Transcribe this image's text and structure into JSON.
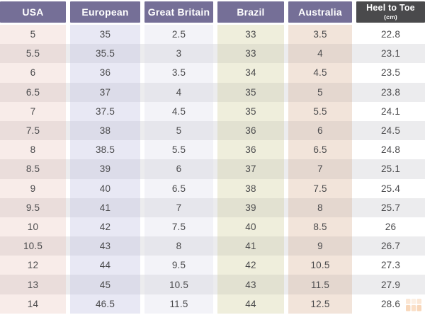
{
  "chart_data": {
    "type": "table",
    "title": "",
    "columns": [
      {
        "label": "USA",
        "sublabel": ""
      },
      {
        "label": "European",
        "sublabel": ""
      },
      {
        "label": "Great Britain",
        "sublabel": ""
      },
      {
        "label": "Brazil",
        "sublabel": ""
      },
      {
        "label": "Australia",
        "sublabel": ""
      },
      {
        "label": "Heel to Toe",
        "sublabel": "(cm)"
      }
    ],
    "rows": [
      [
        "5",
        "35",
        "2.5",
        "33",
        "3.5",
        "22.8"
      ],
      [
        "5.5",
        "35.5",
        "3",
        "33",
        "4",
        "23.1"
      ],
      [
        "6",
        "36",
        "3.5",
        "34",
        "4.5",
        "23.5"
      ],
      [
        "6.5",
        "37",
        "4",
        "35",
        "5",
        "23.8"
      ],
      [
        "7",
        "37.5",
        "4.5",
        "35",
        "5.5",
        "24.1"
      ],
      [
        "7.5",
        "38",
        "5",
        "36",
        "6",
        "24.5"
      ],
      [
        "8",
        "38.5",
        "5.5",
        "36",
        "6.5",
        "24.8"
      ],
      [
        "8.5",
        "39",
        "6",
        "37",
        "7",
        "25.1"
      ],
      [
        "9",
        "40",
        "6.5",
        "38",
        "7.5",
        "25.4"
      ],
      [
        "9.5",
        "41",
        "7",
        "39",
        "8",
        "25.7"
      ],
      [
        "10",
        "42",
        "7.5",
        "40",
        "8.5",
        "26"
      ],
      [
        "10.5",
        "43",
        "8",
        "41",
        "9",
        "26.7"
      ],
      [
        "12",
        "44",
        "9.5",
        "42",
        "10.5",
        "27.3"
      ],
      [
        "13",
        "45",
        "10.5",
        "43",
        "11.5",
        "27.9"
      ],
      [
        "14",
        "46.5",
        "11.5",
        "44",
        "12.5",
        "28.6"
      ]
    ]
  },
  "colors": {
    "header_bg": "#756F97",
    "header_text": "#FFFFFF",
    "heel_toe_header_bg": "#4A4A4C",
    "cell_text": "#4A4A4C",
    "row_alt_overlay": "#ECECEE",
    "column_tints_odd_rows": [
      "#F8ECE9",
      "#E8E8F4",
      "#F3F3F8",
      "#EFEEDC",
      "#F2E4DA",
      "#FFFFFF"
    ],
    "column_tints_even_rows": [
      "#EADDDB",
      "#DCDCE9",
      "#E6E6EC",
      "#E2E1D1",
      "#E4D7CF",
      "#ECECEE"
    ],
    "watermark": "#EE9D57"
  },
  "icons": {
    "watermark": "table-grid-icon"
  }
}
